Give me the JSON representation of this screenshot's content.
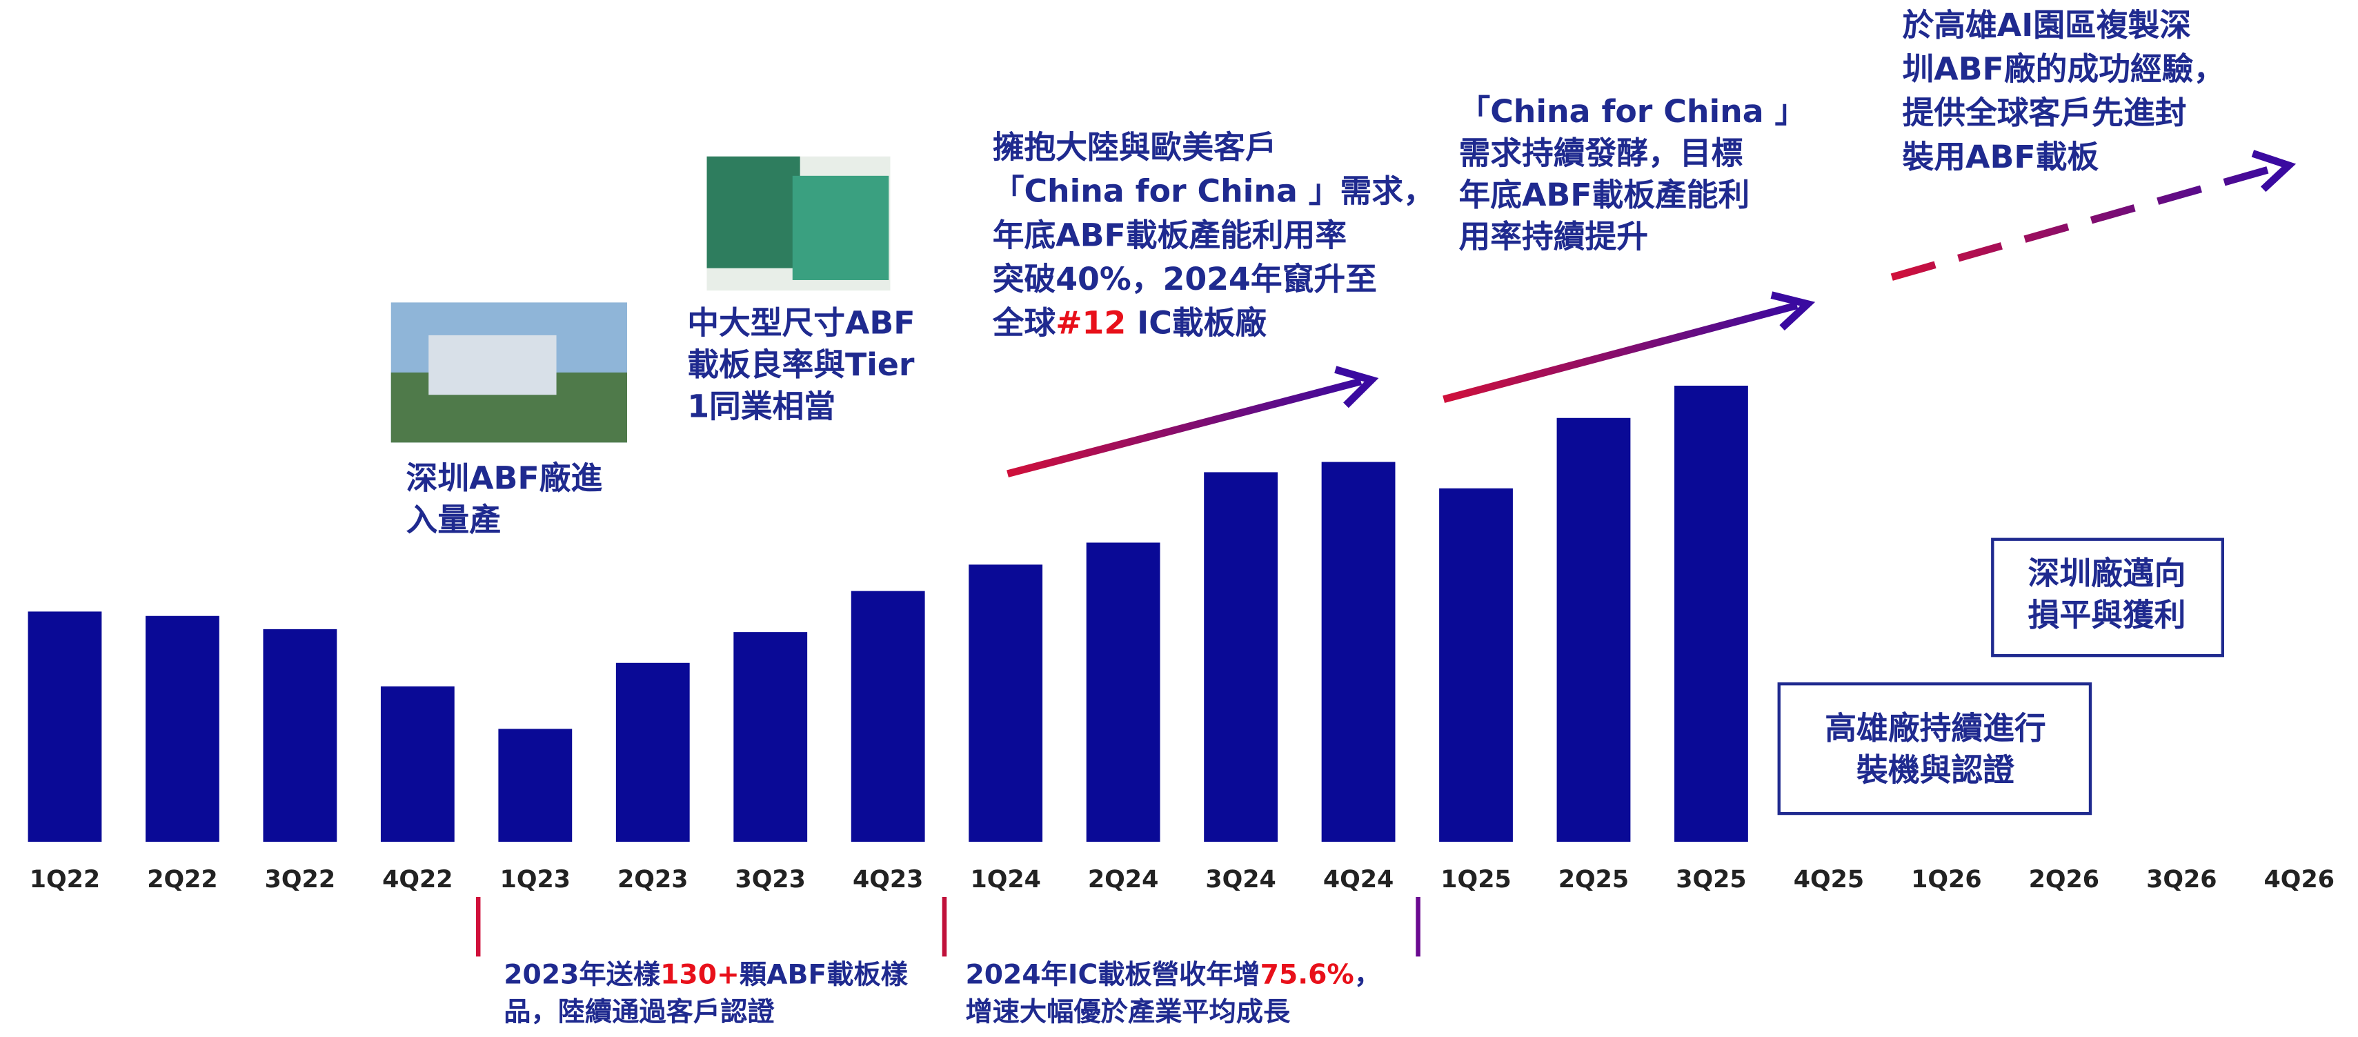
{
  "chart_data": {
    "type": "bar",
    "categories": [
      "1Q22",
      "2Q22",
      "3Q22",
      "4Q22",
      "1Q23",
      "2Q23",
      "3Q23",
      "4Q23",
      "1Q24",
      "2Q24",
      "3Q24",
      "4Q24",
      "1Q25",
      "2Q25",
      "3Q25",
      "4Q25",
      "1Q26",
      "2Q26",
      "3Q26",
      "4Q26"
    ],
    "values": [
      157,
      154,
      145,
      106,
      77,
      122,
      143,
      171,
      189,
      204,
      252,
      259,
      241,
      289,
      311,
      null,
      null,
      null,
      null,
      null
    ],
    "color": "#0a0a96",
    "ylim": [
      0,
      320
    ],
    "text_color": "#1f2a8f",
    "highlight_color": "#e8101a",
    "annotations": [
      {
        "lines": [
          [
            "深圳ABF廠進"
          ],
          [
            "入量產"
          ]
        ]
      },
      {
        "lines": [
          [
            "中大型尺寸ABF"
          ],
          [
            "載板良率與Tier"
          ],
          [
            "1同業相當"
          ]
        ]
      },
      {
        "lines": [
          [
            "擁抱大陸與歐美客戶"
          ],
          [
            "「China for China 」需求，"
          ],
          [
            "年底ABF載板產能利用率"
          ],
          [
            "突破40%，2024年竄升至"
          ],
          [
            "全球",
            "#12",
            " IC載板廠"
          ]
        ],
        "highlight": "#12"
      },
      {
        "lines": [
          [
            "「China for China 」"
          ],
          [
            "需求持續發酵，目標"
          ],
          [
            "年底ABF載板產能利"
          ],
          [
            "用率持續提升"
          ]
        ]
      },
      {
        "lines": [
          [
            "於高雄AI園區複製深"
          ],
          [
            "圳ABF廠的成功經驗，"
          ],
          [
            "提供全球客戶先進封"
          ],
          [
            "裝用ABF載板"
          ]
        ]
      },
      {
        "lines": [
          [
            "深圳廠邁向"
          ],
          [
            "損平與獲利"
          ]
        ]
      },
      {
        "lines": [
          [
            "高雄廠持續進行"
          ],
          [
            "裝機與認證"
          ]
        ]
      },
      {
        "lines": [
          [
            "2023年送樣",
            "130+",
            "顆ABF載板樣"
          ],
          [
            "品，陸續通過客戶認證"
          ]
        ],
        "highlight": "130+"
      },
      {
        "lines": [
          [
            "2024年IC載板營收年增",
            "75.6%",
            "，"
          ],
          [
            "增速大幅優於產業平均成長"
          ]
        ],
        "highlight": "75.6%"
      }
    ]
  }
}
